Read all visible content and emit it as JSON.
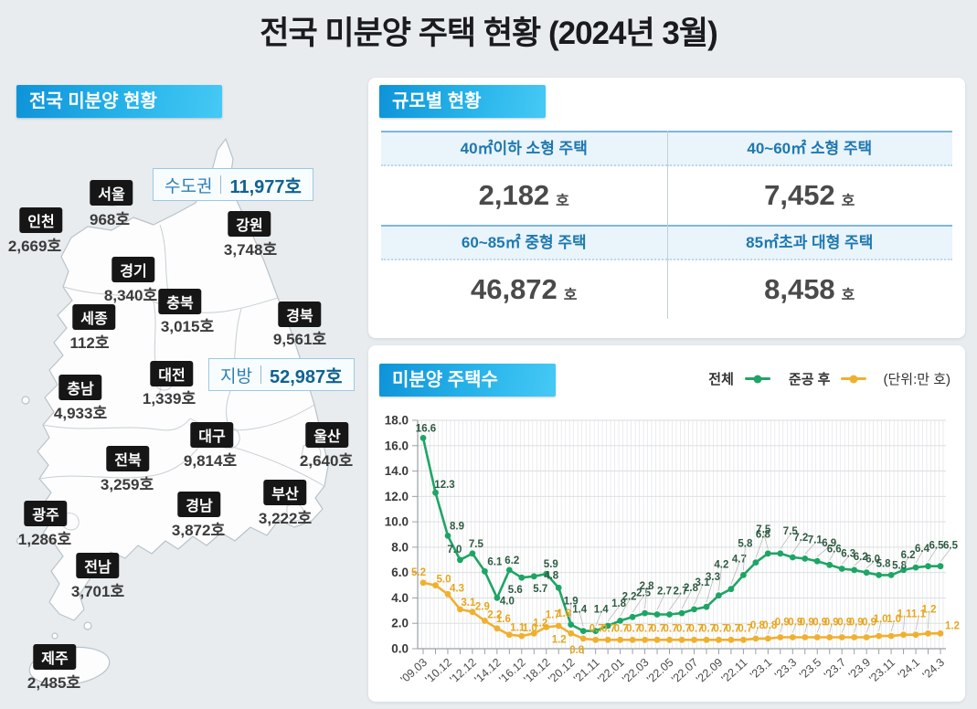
{
  "page_title": "전국 미분양 주택 현황  (2024년 3월)",
  "map_section": {
    "header": "전국 미분양 현황",
    "callouts": {
      "capital": {
        "label": "수도권",
        "value": "11,977호"
      },
      "provincial": {
        "label": "지방",
        "value": "52,987호"
      }
    },
    "regions": [
      {
        "name": "서울",
        "value": "968호"
      },
      {
        "name": "인천",
        "value": "2,669호"
      },
      {
        "name": "경기",
        "value": "8,340호"
      },
      {
        "name": "강원",
        "value": "3,748호"
      },
      {
        "name": "충북",
        "value": "3,015호"
      },
      {
        "name": "세종",
        "value": "112호"
      },
      {
        "name": "충남",
        "value": "4,933호"
      },
      {
        "name": "대전",
        "value": "1,339호"
      },
      {
        "name": "경북",
        "value": "9,561호"
      },
      {
        "name": "대구",
        "value": "9,814호"
      },
      {
        "name": "울산",
        "value": "2,640호"
      },
      {
        "name": "전북",
        "value": "3,259호"
      },
      {
        "name": "경남",
        "value": "3,872호"
      },
      {
        "name": "부산",
        "value": "3,222호"
      },
      {
        "name": "광주",
        "value": "1,286호"
      },
      {
        "name": "전남",
        "value": "3,701호"
      },
      {
        "name": "제주",
        "value": "2,485호"
      }
    ]
  },
  "size_section": {
    "header": "규모별 현황",
    "cells": [
      {
        "label": "40㎡이하 소형 주택",
        "value": "2,182",
        "unit": "호"
      },
      {
        "label": "40~60㎡ 소형 주택",
        "value": "7,452",
        "unit": "호"
      },
      {
        "label": "60~85㎡ 중형 주택",
        "value": "46,872",
        "unit": "호"
      },
      {
        "label": "85㎡초과 대형 주택",
        "value": "8,458",
        "unit": "호"
      }
    ]
  },
  "chart_section": {
    "header": "미분양 주택수",
    "unit_note": "(단위:만 호)",
    "legend": [
      {
        "label": "전체",
        "color": "#1ea566"
      },
      {
        "label": "준공 후",
        "color": "#f0b02f"
      }
    ]
  },
  "chart_data": {
    "type": "line",
    "title": "미분양 주택수",
    "unit": "만 호",
    "n_points": 43,
    "x_tick_labels": [
      "'09.03",
      "'10.12",
      "'12.12",
      "'14.12",
      "'16.12",
      "'18.12",
      "'20.12",
      "'21.11",
      "'22.01",
      "'22.03",
      "'22.05",
      "'22.07",
      "'22.09",
      "'22.11",
      "'23.1",
      "'23.3",
      "'23.5",
      "'23.7",
      "'23.9",
      "'23.11",
      "'24.1",
      "'24.3"
    ],
    "x_label_every": 2,
    "series": [
      {
        "name": "전체",
        "color": "#1ea566",
        "values": [
          16.6,
          12.3,
          8.9,
          7.0,
          7.5,
          6.1,
          4.0,
          6.2,
          5.6,
          5.7,
          5.9,
          4.8,
          1.9,
          1.4,
          1.4,
          1.8,
          2.2,
          2.5,
          2.8,
          2.7,
          2.7,
          2.8,
          3.1,
          3.3,
          4.2,
          4.7,
          5.8,
          6.8,
          7.5,
          7.5,
          7.2,
          7.1,
          6.9,
          6.6,
          6.3,
          6.2,
          6.0,
          5.8,
          5.8,
          6.2,
          6.4,
          6.5,
          6.5
        ]
      },
      {
        "name": "준공 후",
        "color": "#f0b02f",
        "values": [
          5.2,
          5.0,
          4.3,
          3.1,
          2.9,
          2.2,
          1.6,
          1.1,
          1.0,
          1.2,
          1.7,
          1.8,
          1.2,
          0.8,
          0.7,
          0.7,
          0.7,
          0.7,
          0.7,
          0.7,
          0.7,
          0.7,
          0.7,
          0.7,
          0.7,
          0.7,
          0.7,
          0.8,
          0.8,
          0.9,
          0.9,
          0.9,
          0.9,
          0.9,
          0.9,
          0.9,
          0.9,
          1.0,
          1.0,
          1.1,
          1.1,
          1.2,
          1.2
        ]
      }
    ],
    "ylim": [
      0,
      18
    ],
    "y_ticks": [
      0,
      2,
      4,
      6,
      8,
      10,
      12,
      14,
      16,
      18
    ],
    "grid": true,
    "legend_position": "top-right"
  }
}
